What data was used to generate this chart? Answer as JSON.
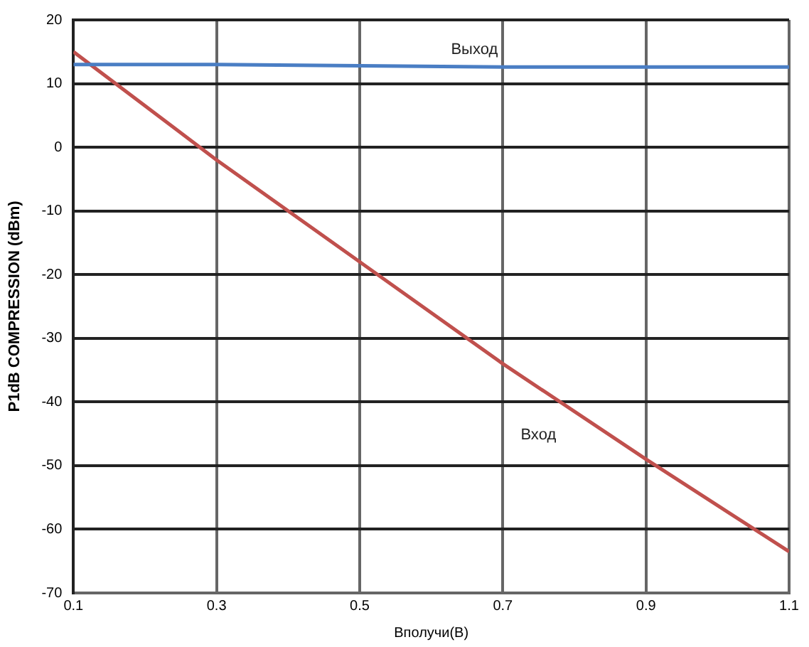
{
  "chart_data": {
    "type": "line",
    "xlabel": "Вполучи(В)",
    "ylabel": "P1dB COMPRESSION (dBm)",
    "xlim": [
      0.1,
      1.1
    ],
    "xticks": [
      {
        "value": 0.1,
        "label": "0.1"
      },
      {
        "value": 0.3,
        "label": "0.3"
      },
      {
        "value": 0.5,
        "label": "0.5"
      },
      {
        "value": 0.7,
        "label": "0.7"
      },
      {
        "value": 0.9,
        "label": "0.9"
      },
      {
        "value": 1.1,
        "label": "1.1"
      }
    ],
    "ylim": [
      -70,
      20
    ],
    "yticks": [
      -70,
      -60,
      -50,
      -40,
      -30,
      -20,
      -10,
      0,
      10,
      20
    ],
    "grid": true,
    "legend": false,
    "marker": "none",
    "line_style": "solid",
    "series": [
      {
        "name": "Выход",
        "color": "#4a7ec4",
        "x": [
          0.1,
          0.3,
          0.5,
          0.7,
          0.9,
          1.1
        ],
        "values": [
          13,
          13,
          12.8,
          12.6,
          12.6,
          12.6
        ]
      },
      {
        "name": "Вход",
        "color": "#c0504d",
        "x": [
          0.1,
          0.3,
          0.5,
          0.7,
          0.9,
          1.1
        ],
        "values": [
          15,
          -2,
          -18,
          -34,
          -49,
          -63.5
        ]
      }
    ]
  }
}
